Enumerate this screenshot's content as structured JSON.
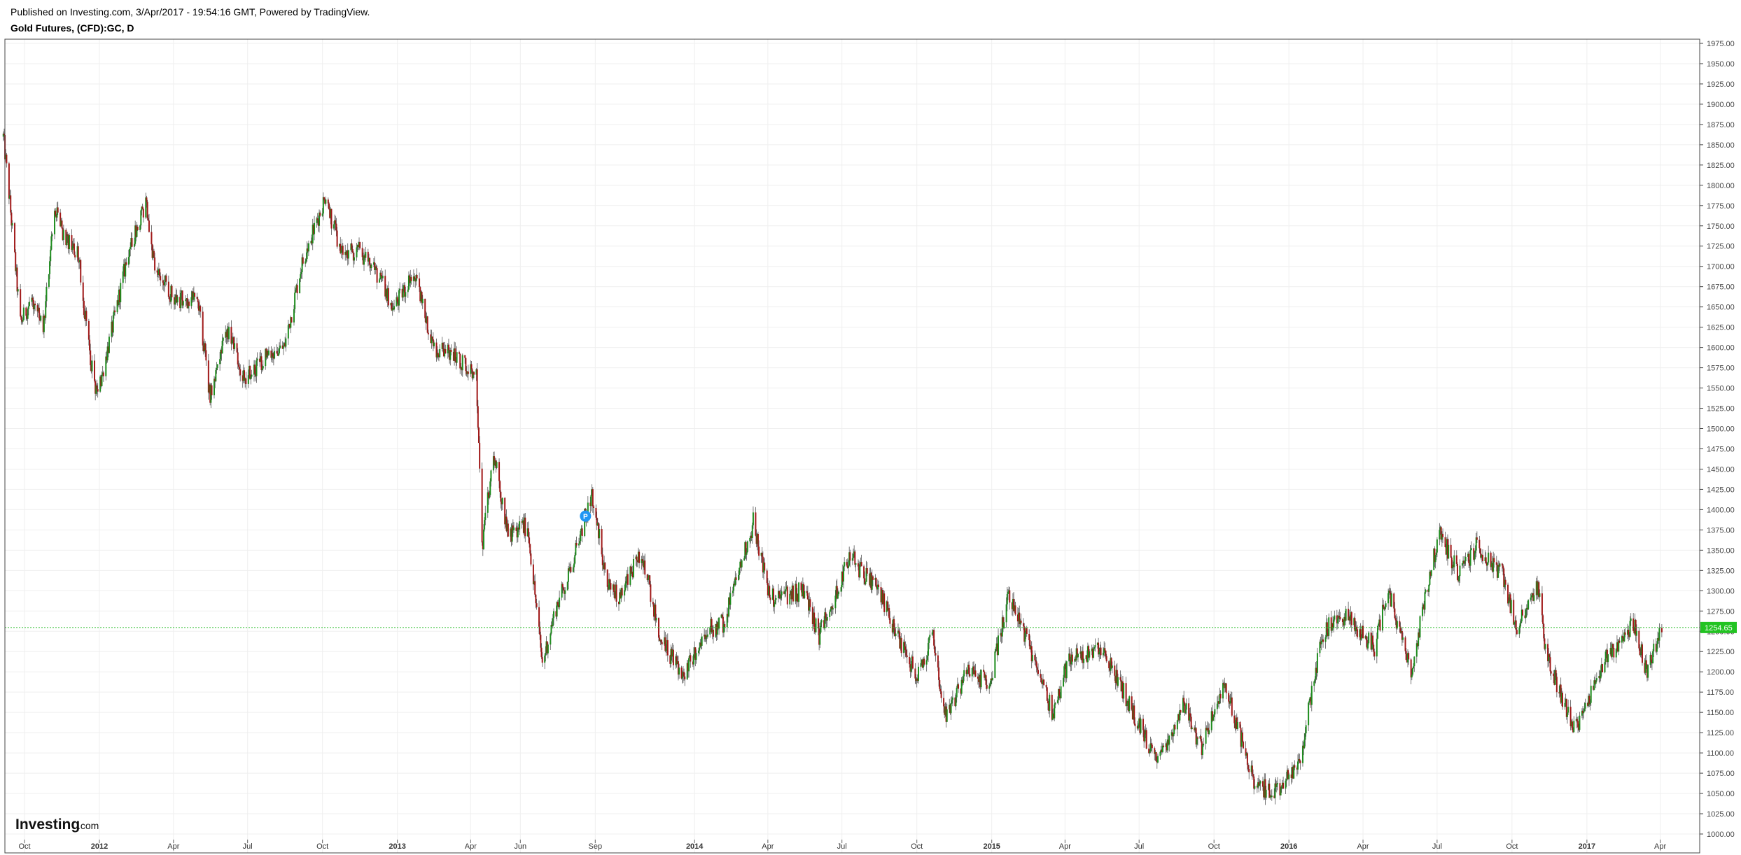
{
  "header": {
    "published": "Published on Investing.com, 3/Apr/2017 - 19:54:16 GMT, Powered by TradingView.",
    "title": "Gold Futures, (CFD):GC, D"
  },
  "logo": {
    "brand": "Investing",
    "suffix": ".com"
  },
  "marker": {
    "label": "P"
  },
  "colors": {
    "up": "#1e8c1e",
    "down": "#a01818",
    "grid": "#efefef",
    "price_line": "#2fbf2f",
    "price_badge": "#22c322",
    "marker": "#2196f3"
  },
  "chart_data": {
    "type": "candlestick",
    "interval": "D",
    "grid": true,
    "y_axis_position": "right",
    "ylim": [
      1000,
      1975
    ],
    "y_ticks": [
      "1975.00",
      "1950.00",
      "1925.00",
      "1900.00",
      "1875.00",
      "1850.00",
      "1825.00",
      "1800.00",
      "1775.00",
      "1750.00",
      "1725.00",
      "1700.00",
      "1675.00",
      "1650.00",
      "1625.00",
      "1600.00",
      "1575.00",
      "1550.00",
      "1525.00",
      "1500.00",
      "1475.00",
      "1450.00",
      "1425.00",
      "1400.00",
      "1375.00",
      "1350.00",
      "1325.00",
      "1300.00",
      "1275.00",
      "1250.00",
      "1225.00",
      "1200.00",
      "1175.00",
      "1150.00",
      "1125.00",
      "1100.00",
      "1075.00",
      "1050.00",
      "1025.00",
      "1000.00"
    ],
    "x_ticks": [
      {
        "label": "Oct",
        "date": "2011-10-01",
        "bold": false
      },
      {
        "label": "2012",
        "date": "2012-01-01",
        "bold": true
      },
      {
        "label": "Apr",
        "date": "2012-04-01",
        "bold": false
      },
      {
        "label": "Jul",
        "date": "2012-07-01",
        "bold": false
      },
      {
        "label": "Oct",
        "date": "2012-10-01",
        "bold": false
      },
      {
        "label": "2013",
        "date": "2013-01-01",
        "bold": true
      },
      {
        "label": "Apr",
        "date": "2013-04-01",
        "bold": false
      },
      {
        "label": "Jun",
        "date": "2013-06-01",
        "bold": false
      },
      {
        "label": "Sep",
        "date": "2013-09-01",
        "bold": false
      },
      {
        "label": "2014",
        "date": "2014-01-01",
        "bold": true
      },
      {
        "label": "Apr",
        "date": "2014-04-01",
        "bold": false
      },
      {
        "label": "Jul",
        "date": "2014-07-01",
        "bold": false
      },
      {
        "label": "Oct",
        "date": "2014-10-01",
        "bold": false
      },
      {
        "label": "2015",
        "date": "2015-01-01",
        "bold": true
      },
      {
        "label": "Apr",
        "date": "2015-04-01",
        "bold": false
      },
      {
        "label": "Jul",
        "date": "2015-07-01",
        "bold": false
      },
      {
        "label": "Oct",
        "date": "2015-10-01",
        "bold": false
      },
      {
        "label": "2016",
        "date": "2016-01-01",
        "bold": true
      },
      {
        "label": "Apr",
        "date": "2016-04-01",
        "bold": false
      },
      {
        "label": "Jul",
        "date": "2016-07-01",
        "bold": false
      },
      {
        "label": "Oct",
        "date": "2016-10-01",
        "bold": false
      },
      {
        "label": "2017",
        "date": "2017-01-01",
        "bold": true
      },
      {
        "label": "Apr",
        "date": "2017-04-01",
        "bold": false
      }
    ],
    "last_price": 1254.65,
    "last_price_label": "1254.65",
    "price_path": [
      {
        "date": "2011-09-05",
        "price": 1860
      },
      {
        "date": "2011-09-12",
        "price": 1790
      },
      {
        "date": "2011-09-26",
        "price": 1630
      },
      {
        "date": "2011-10-10",
        "price": 1660
      },
      {
        "date": "2011-10-24",
        "price": 1620
      },
      {
        "date": "2011-11-07",
        "price": 1770
      },
      {
        "date": "2011-11-21",
        "price": 1730
      },
      {
        "date": "2011-12-05",
        "price": 1720
      },
      {
        "date": "2011-12-19",
        "price": 1600
      },
      {
        "date": "2011-12-29",
        "price": 1540
      },
      {
        "date": "2012-01-16",
        "price": 1620
      },
      {
        "date": "2012-02-06",
        "price": 1720
      },
      {
        "date": "2012-02-28",
        "price": 1780
      },
      {
        "date": "2012-03-08",
        "price": 1700
      },
      {
        "date": "2012-04-02",
        "price": 1660
      },
      {
        "date": "2012-05-01",
        "price": 1660
      },
      {
        "date": "2012-05-16",
        "price": 1540
      },
      {
        "date": "2012-06-06",
        "price": 1620
      },
      {
        "date": "2012-06-28",
        "price": 1560
      },
      {
        "date": "2012-07-23",
        "price": 1590
      },
      {
        "date": "2012-08-15",
        "price": 1600
      },
      {
        "date": "2012-09-05",
        "price": 1700
      },
      {
        "date": "2012-10-04",
        "price": 1785
      },
      {
        "date": "2012-10-25",
        "price": 1715
      },
      {
        "date": "2012-11-15",
        "price": 1720
      },
      {
        "date": "2012-12-04",
        "price": 1695
      },
      {
        "date": "2012-12-28",
        "price": 1650
      },
      {
        "date": "2013-01-21",
        "price": 1690
      },
      {
        "date": "2013-02-15",
        "price": 1600
      },
      {
        "date": "2013-03-12",
        "price": 1590
      },
      {
        "date": "2013-04-08",
        "price": 1570
      },
      {
        "date": "2013-04-15",
        "price": 1350
      },
      {
        "date": "2013-04-29",
        "price": 1470
      },
      {
        "date": "2013-05-17",
        "price": 1370
      },
      {
        "date": "2013-06-10",
        "price": 1380
      },
      {
        "date": "2013-06-28",
        "price": 1210
      },
      {
        "date": "2013-07-15",
        "price": 1280
      },
      {
        "date": "2013-07-31",
        "price": 1320
      },
      {
        "date": "2013-08-27",
        "price": 1420
      },
      {
        "date": "2013-09-16",
        "price": 1310
      },
      {
        "date": "2013-10-01",
        "price": 1290
      },
      {
        "date": "2013-10-28",
        "price": 1350
      },
      {
        "date": "2013-11-20",
        "price": 1240
      },
      {
        "date": "2013-12-19",
        "price": 1195
      },
      {
        "date": "2014-01-13",
        "price": 1250
      },
      {
        "date": "2014-02-06",
        "price": 1260
      },
      {
        "date": "2014-03-14",
        "price": 1385
      },
      {
        "date": "2014-04-04",
        "price": 1290
      },
      {
        "date": "2014-05-15",
        "price": 1300
      },
      {
        "date": "2014-06-03",
        "price": 1245
      },
      {
        "date": "2014-07-10",
        "price": 1340
      },
      {
        "date": "2014-08-15",
        "price": 1300
      },
      {
        "date": "2014-09-12",
        "price": 1230
      },
      {
        "date": "2014-10-03",
        "price": 1195
      },
      {
        "date": "2014-10-20",
        "price": 1245
      },
      {
        "date": "2014-11-06",
        "price": 1140
      },
      {
        "date": "2014-12-01",
        "price": 1200
      },
      {
        "date": "2014-12-30",
        "price": 1185
      },
      {
        "date": "2015-01-22",
        "price": 1300
      },
      {
        "date": "2015-03-17",
        "price": 1150
      },
      {
        "date": "2015-04-06",
        "price": 1215
      },
      {
        "date": "2015-05-18",
        "price": 1225
      },
      {
        "date": "2015-06-10",
        "price": 1180
      },
      {
        "date": "2015-07-24",
        "price": 1085
      },
      {
        "date": "2015-08-24",
        "price": 1160
      },
      {
        "date": "2015-09-15",
        "price": 1105
      },
      {
        "date": "2015-10-14",
        "price": 1185
      },
      {
        "date": "2015-11-20",
        "price": 1060
      },
      {
        "date": "2015-12-17",
        "price": 1050
      },
      {
        "date": "2016-01-14",
        "price": 1090
      },
      {
        "date": "2016-02-11",
        "price": 1250
      },
      {
        "date": "2016-03-10",
        "price": 1270
      },
      {
        "date": "2016-04-15",
        "price": 1230
      },
      {
        "date": "2016-05-02",
        "price": 1300
      },
      {
        "date": "2016-05-30",
        "price": 1200
      },
      {
        "date": "2016-06-24",
        "price": 1330
      },
      {
        "date": "2016-07-06",
        "price": 1370
      },
      {
        "date": "2016-07-27",
        "price": 1320
      },
      {
        "date": "2016-08-18",
        "price": 1355
      },
      {
        "date": "2016-09-20",
        "price": 1320
      },
      {
        "date": "2016-10-06",
        "price": 1255
      },
      {
        "date": "2016-11-02",
        "price": 1305
      },
      {
        "date": "2016-11-11",
        "price": 1225
      },
      {
        "date": "2016-12-01",
        "price": 1170
      },
      {
        "date": "2016-12-15",
        "price": 1128
      },
      {
        "date": "2017-01-24",
        "price": 1215
      },
      {
        "date": "2017-02-27",
        "price": 1260
      },
      {
        "date": "2017-03-15",
        "price": 1200
      },
      {
        "date": "2017-04-03",
        "price": 1255
      }
    ]
  }
}
